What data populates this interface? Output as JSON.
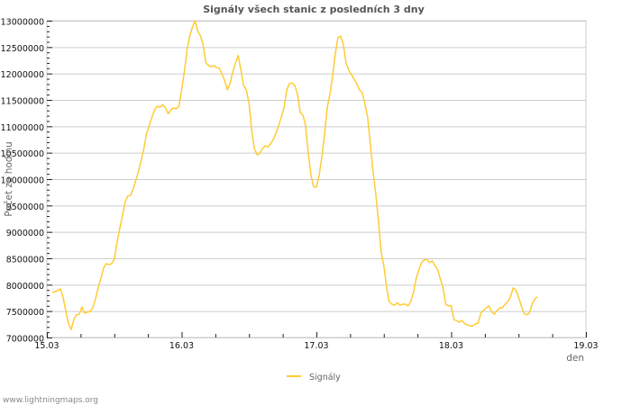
{
  "chart_data": {
    "type": "line",
    "title": "Signály všech stanic z posledních 3 dny",
    "xlabel": "den",
    "ylabel": "Počet za hodinu",
    "x_unit": "hours since 15.03 00:00",
    "x_ticks": [
      "15.03",
      "16.03",
      "17.03",
      "18.03",
      "19.03"
    ],
    "xlim_days": [
      0,
      4
    ],
    "ylim": [
      7000000,
      13000000
    ],
    "y_ticks": [
      7000000,
      7500000,
      8000000,
      8500000,
      9000000,
      9500000,
      10000000,
      10500000,
      11000000,
      11500000,
      12000000,
      12500000,
      13000000
    ],
    "grid": true,
    "legend_position": "bottom-center",
    "series": [
      {
        "name": "Signály",
        "color": "#ffcc33",
        "x_start_hours": 0.96,
        "x_step_hours": 0.48,
        "values_thousands": [
          7850,
          7870,
          7890,
          7920,
          7770,
          7510,
          7260,
          7150,
          7340,
          7430,
          7440,
          7580,
          7460,
          7480,
          7490,
          7560,
          7720,
          7940,
          8110,
          8310,
          8400,
          8380,
          8400,
          8480,
          8790,
          9050,
          9300,
          9560,
          9680,
          9690,
          9810,
          9980,
          10150,
          10360,
          10580,
          10870,
          11010,
          11180,
          11310,
          11380,
          11360,
          11410,
          11350,
          11240,
          11310,
          11350,
          11330,
          11380,
          11690,
          12030,
          12450,
          12710,
          12880,
          13000,
          12800,
          12710,
          12540,
          12200,
          12150,
          12130,
          12150,
          12110,
          12100,
          11990,
          11860,
          11690,
          11820,
          12030,
          12200,
          12340,
          12060,
          11770,
          11690,
          11430,
          10920,
          10580,
          10460,
          10490,
          10580,
          10630,
          10610,
          10670,
          10750,
          10870,
          11010,
          11180,
          11350,
          11690,
          11810,
          11820,
          11770,
          11600,
          11260,
          11210,
          11010,
          10490,
          10070,
          9850,
          9850,
          10070,
          10410,
          10840,
          11350,
          11600,
          11940,
          12370,
          12680,
          12710,
          12540,
          12200,
          12060,
          11980,
          11890,
          11810,
          11690,
          11640,
          11430,
          11180,
          10670,
          10150,
          9730,
          9220,
          8620,
          8360,
          7970,
          7680,
          7630,
          7610,
          7660,
          7610,
          7630,
          7630,
          7600,
          7680,
          7850,
          8110,
          8280,
          8420,
          8470,
          8480,
          8420,
          8450,
          8360,
          8280,
          8110,
          7940,
          7630,
          7600,
          7600,
          7340,
          7320,
          7290,
          7320,
          7260,
          7240,
          7220,
          7220,
          7260,
          7270,
          7460,
          7510,
          7560,
          7600,
          7490,
          7440,
          7510,
          7560,
          7560,
          7630,
          7680,
          7770,
          7940,
          7900,
          7770,
          7600,
          7460,
          7430,
          7460,
          7630,
          7730,
          7770
        ]
      }
    ]
  },
  "footer": {
    "watermark": "www.lightningmaps.org"
  }
}
